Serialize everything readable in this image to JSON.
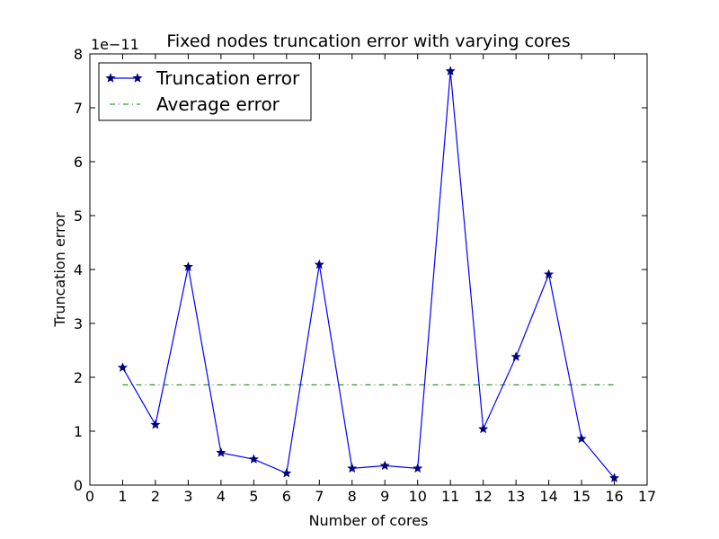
{
  "chart_data": {
    "type": "line",
    "title": "Fixed nodes truncation error with varying cores",
    "xlabel": "Number of cores",
    "ylabel": "Truncation error",
    "y_offset_label": "1e−11",
    "xlim": [
      0,
      17
    ],
    "ylim": [
      0,
      8
    ],
    "xticks": [
      "0",
      "1",
      "2",
      "3",
      "4",
      "5",
      "6",
      "7",
      "8",
      "9",
      "10",
      "11",
      "12",
      "13",
      "14",
      "15",
      "16",
      "17"
    ],
    "yticks": [
      "0",
      "1",
      "2",
      "3",
      "4",
      "5",
      "6",
      "7",
      "8"
    ],
    "grid": false,
    "legend_position": "upper-left",
    "x": [
      1,
      2,
      3,
      4,
      5,
      6,
      7,
      8,
      9,
      10,
      11,
      12,
      13,
      14,
      15,
      16
    ],
    "series": [
      {
        "name": "Truncation error",
        "style": "solid line with star markers",
        "color": "#0000ff",
        "values": [
          2.18,
          1.12,
          4.05,
          0.6,
          0.48,
          0.22,
          4.09,
          0.31,
          0.36,
          0.31,
          7.68,
          1.04,
          2.38,
          3.91,
          0.86,
          0.13
        ]
      },
      {
        "name": "Average error",
        "style": "dash-dot line",
        "color": "#008000",
        "values": [
          1.86,
          1.86,
          1.86,
          1.86,
          1.86,
          1.86,
          1.86,
          1.86,
          1.86,
          1.86,
          1.86,
          1.86,
          1.86,
          1.86,
          1.86,
          1.86
        ]
      }
    ]
  }
}
